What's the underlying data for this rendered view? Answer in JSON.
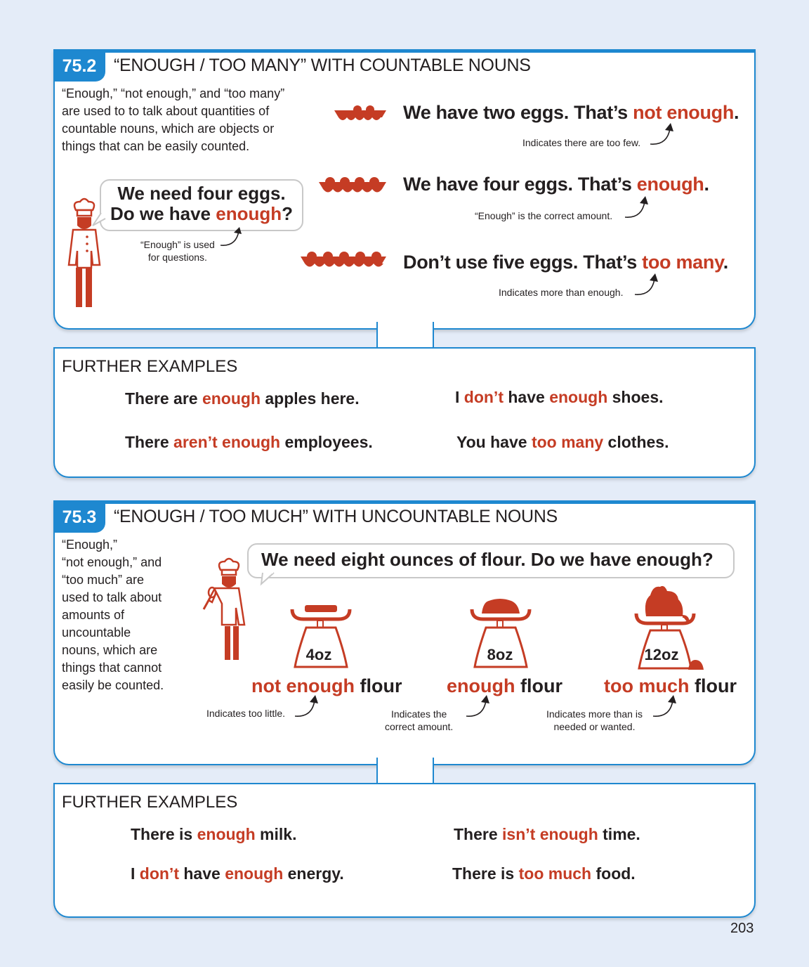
{
  "section1": {
    "number": "75.2",
    "title": "“ENOUGH / TOO MANY” WITH COUNTABLE NOUNS",
    "intro": "“Enough,” “not enough,” and “too many” are used to to talk about quantities of countable nouns, which are objects or things that can be easily counted.",
    "bubble_line1": "We need four eggs.",
    "bubble_line2_pre": "Do we have ",
    "bubble_line2_red": "enough",
    "bubble_line2_post": "?",
    "bubble_note_1": "“Enough” is used",
    "bubble_note_2": "for questions.",
    "examples": [
      {
        "pre": "We have two eggs. That’s ",
        "red": "not enough",
        "post": ".",
        "note": "Indicates there are too few."
      },
      {
        "pre": "We have four eggs. That’s ",
        "red": "enough",
        "post": ".",
        "note": "“Enough” is the correct amount."
      },
      {
        "pre": "Don’t use five eggs. That’s ",
        "red": "too many",
        "post": ".",
        "note": "Indicates more than enough."
      }
    ]
  },
  "further1": {
    "heading": "FURTHER EXAMPLES",
    "s1": {
      "a": "There are ",
      "b": "enough",
      "c": " apples here."
    },
    "s2": {
      "a": "There ",
      "b": "aren’t enough",
      "c": " employees."
    },
    "s3": {
      "a": "I ",
      "b": "don’t",
      "c": " have ",
      "d": "enough",
      "e": " shoes."
    },
    "s4": {
      "a": "You have ",
      "b": "too many",
      "c": " clothes."
    }
  },
  "section2": {
    "number": "75.3",
    "title": "“ENOUGH / TOO MUCH” WITH UNCOUNTABLE NOUNS",
    "intro_lines": [
      "“Enough,”",
      "“not enough,” and",
      "“too much” are",
      "used to talk about",
      "amounts of",
      "uncountable",
      "nouns, which are",
      "things that cannot",
      "easily be counted."
    ],
    "bubble": "We need eight ounces of flour. Do we have enough?",
    "scales": [
      {
        "weight": "4oz",
        "red": "not enough",
        "black": " flour",
        "note1": "Indicates too little.",
        "note2": ""
      },
      {
        "weight": "8oz",
        "red": "enough",
        "black": " flour",
        "note1": "Indicates the",
        "note2": "correct amount."
      },
      {
        "weight": "12oz",
        "red": "too much",
        "black": " flour",
        "note1": "Indicates more than is",
        "note2": "needed or wanted."
      }
    ]
  },
  "further2": {
    "heading": "FURTHER EXAMPLES",
    "s1": {
      "a": "There is ",
      "b": "enough",
      "c": " milk."
    },
    "s2": {
      "a": "I ",
      "b": "don’t",
      "c": " have ",
      "d": "enough",
      "e": " energy."
    },
    "s3": {
      "a": "There ",
      "b": "isn’t enough",
      "c": " time."
    },
    "s4": {
      "a": "There is ",
      "b": "too much",
      "c": " food."
    }
  },
  "page_number": "203",
  "colors": {
    "accent_blue": "#1e88d0",
    "highlight_red": "#c53c24",
    "background": "#e4ecf8"
  },
  "icons": [
    "egg-tray-icon",
    "chef-icon",
    "kitchen-scale-icon",
    "curved-arrow-icon"
  ]
}
